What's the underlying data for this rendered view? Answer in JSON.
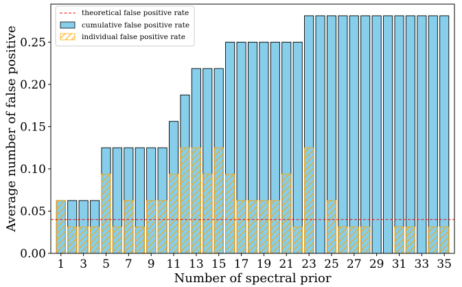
{
  "chart_data": {
    "type": "bar",
    "xlabel": "Number of spectral prior",
    "ylabel": "Average number of false positive",
    "x": [
      1,
      2,
      3,
      4,
      5,
      6,
      7,
      8,
      9,
      10,
      11,
      12,
      13,
      14,
      15,
      16,
      17,
      18,
      19,
      20,
      21,
      22,
      23,
      24,
      25,
      26,
      27,
      28,
      29,
      30,
      31,
      32,
      33,
      34,
      35
    ],
    "x_tick_labels": [
      "1",
      "3",
      "5",
      "7",
      "9",
      "11",
      "13",
      "15",
      "17",
      "19",
      "21",
      "23",
      "25",
      "27",
      "29",
      "31",
      "33",
      "35"
    ],
    "x_tick_values": [
      1,
      3,
      5,
      7,
      9,
      11,
      13,
      15,
      17,
      19,
      21,
      23,
      25,
      27,
      29,
      31,
      33,
      35
    ],
    "y_tick_labels": [
      "0.00",
      "0.05",
      "0.10",
      "0.15",
      "0.20",
      "0.25"
    ],
    "y_tick_values": [
      0,
      0.05,
      0.1,
      0.15,
      0.2,
      0.25
    ],
    "ylim": [
      0,
      0.295
    ],
    "xlim": [
      0.1,
      35.9
    ],
    "legend_placement": "top-left",
    "grid": false,
    "series": [
      {
        "name": "cumulative false positive rate",
        "style": "bar",
        "color": "#87ceeb",
        "edge_color": "#000000",
        "values": [
          0.0625,
          0.0625,
          0.0625,
          0.0625,
          0.125,
          0.125,
          0.125,
          0.125,
          0.125,
          0.125,
          0.15625,
          0.1875,
          0.21875,
          0.21875,
          0.21875,
          0.25,
          0.25,
          0.25,
          0.25,
          0.25,
          0.25,
          0.25,
          0.28125,
          0.28125,
          0.28125,
          0.28125,
          0.28125,
          0.28125,
          0.28125,
          0.28125,
          0.28125,
          0.28125,
          0.28125,
          0.28125,
          0.28125
        ]
      },
      {
        "name": "individual false positive rate",
        "style": "hatched-bar",
        "color": "#ffa500",
        "values": [
          0.0625,
          0.03125,
          0.03125,
          0.03125,
          0.09375,
          0.03125,
          0.0625,
          0.03125,
          0.0625,
          0.0625,
          0.09375,
          0.125,
          0.125,
          0.09375,
          0.125,
          0.09375,
          0.0625,
          0.0625,
          0.0625,
          0.0625,
          0.09375,
          0.03125,
          0.125,
          0,
          0.0625,
          0.03125,
          0.03125,
          0.03125,
          0,
          0,
          0.03125,
          0.03125,
          0,
          0.03125,
          0.03125
        ]
      },
      {
        "name": "theoretical false positive rate",
        "style": "dashed-line",
        "color": "#ff0000",
        "value": 0.04
      }
    ]
  }
}
